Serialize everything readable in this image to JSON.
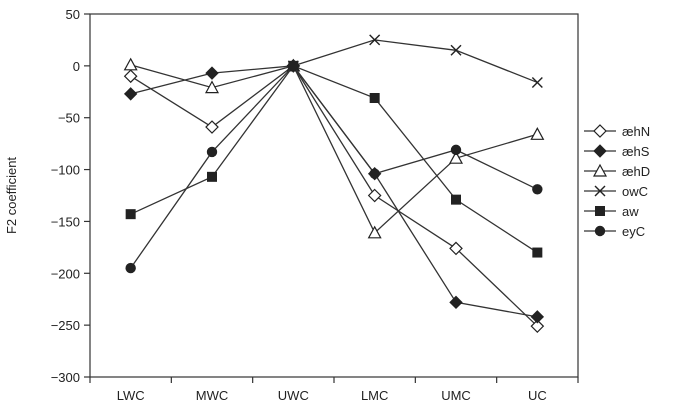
{
  "chart_data": {
    "type": "line",
    "xlabel": "",
    "ylabel": "F2 coefficient",
    "ylim": [
      -300,
      50
    ],
    "yticks": [
      50,
      0,
      -50,
      -100,
      -150,
      -200,
      -250,
      -300
    ],
    "ytick_labels": [
      "50",
      "0",
      "−50",
      "−100",
      "−150",
      "−200",
      "−250",
      "−300"
    ],
    "categories": [
      "LWC",
      "MWC",
      "UWC",
      "LMC",
      "UMC",
      "UC"
    ],
    "grid": false,
    "legend_position": "right",
    "series": [
      {
        "name": "æhN",
        "marker": "diamond-open",
        "values": [
          -10,
          -59,
          0,
          -125,
          -176,
          -251
        ]
      },
      {
        "name": "æhS",
        "marker": "diamond-filled",
        "values": [
          -27,
          -7,
          0,
          -104,
          -228,
          -242
        ]
      },
      {
        "name": "æhD",
        "marker": "triangle-open",
        "values": [
          1,
          -21,
          0,
          -161,
          -89,
          -66
        ]
      },
      {
        "name": "owC",
        "marker": "x",
        "values": [
          null,
          null,
          0,
          25,
          15,
          -16
        ]
      },
      {
        "name": "aw",
        "marker": "square-filled",
        "values": [
          -143,
          -107,
          0,
          -31,
          -129,
          -180
        ]
      },
      {
        "name": "eyC",
        "marker": "circle-filled",
        "values": [
          -195,
          -83,
          0,
          -104,
          -81,
          -119
        ]
      }
    ]
  }
}
